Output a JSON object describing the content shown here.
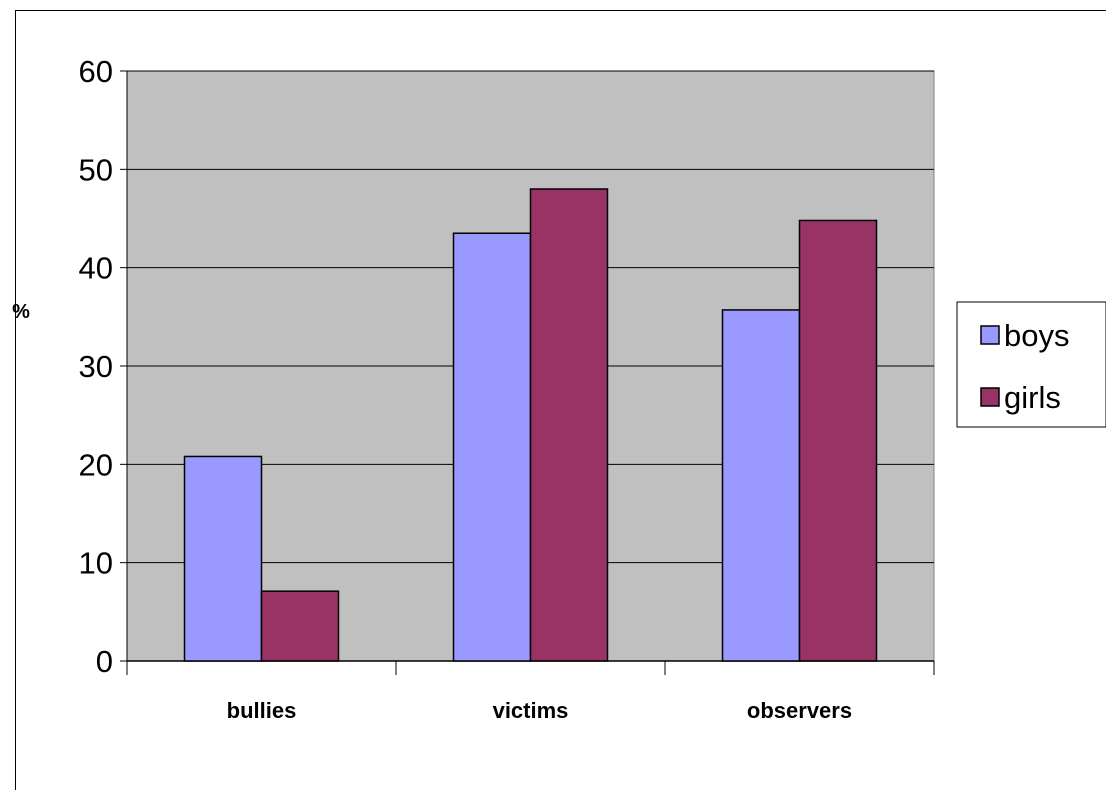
{
  "chart_data": {
    "type": "bar",
    "title": "",
    "xlabel": "",
    "ylabel": "%",
    "ylim": [
      0,
      60
    ],
    "yticks": [
      0,
      10,
      20,
      30,
      40,
      50,
      60
    ],
    "grid": true,
    "legend_position": "right",
    "categories": [
      "bullies",
      "victims",
      "observers"
    ],
    "series": [
      {
        "name": "boys",
        "values": [
          20.8,
          43.5,
          35.7
        ],
        "color": "#9999ff"
      },
      {
        "name": "girls",
        "values": [
          7.1,
          48.0,
          44.8
        ],
        "color": "#993366"
      }
    ],
    "plot_background": "#c0c0c0"
  }
}
